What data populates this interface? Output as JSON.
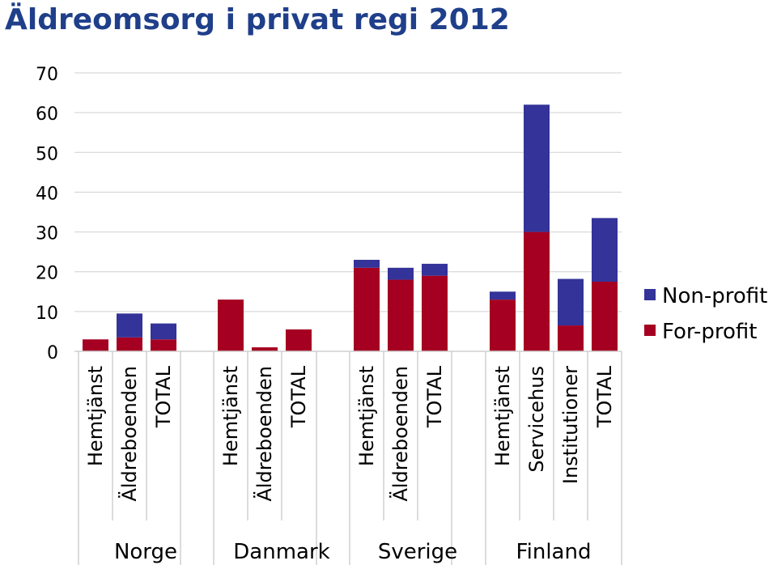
{
  "chart_data": {
    "type": "bar",
    "stacked": true,
    "title": "Äldreomsorg i privat regi 2012",
    "xlabel": "",
    "ylabel": "",
    "ylim": [
      0,
      70
    ],
    "yticks": [
      0,
      10,
      20,
      30,
      40,
      50,
      60,
      70
    ],
    "grid": true,
    "legend_position": "right",
    "groups": [
      {
        "name": "Norge",
        "categories": [
          "Hemtjänst",
          "Äldreboenden",
          "TOTAL"
        ]
      },
      {
        "name": "Danmark",
        "categories": [
          "Hemtjänst",
          "Äldreboenden",
          "TOTAL"
        ]
      },
      {
        "name": "Sverige",
        "categories": [
          "Hemtjänst",
          "Äldreboenden",
          "TOTAL"
        ]
      },
      {
        "name": "Finland",
        "categories": [
          "Hemtjänst",
          "Servicehus",
          "Institutioner",
          "TOTAL"
        ]
      }
    ],
    "categories": [
      "Hemtjänst",
      "Äldreboenden",
      "TOTAL",
      "Hemtjänst",
      "Äldreboenden",
      "TOTAL",
      "Hemtjänst",
      "Äldreboenden",
      "TOTAL",
      "Hemtjänst",
      "Servicehus",
      "Institutioner",
      "TOTAL"
    ],
    "series": [
      {
        "name": "For-profit",
        "color": "#a50021",
        "values": [
          3,
          3.5,
          3,
          13,
          1,
          5.5,
          21,
          18,
          19,
          13,
          30,
          6.5,
          17.5
        ]
      },
      {
        "name": "Non-profit",
        "color": "#333399",
        "values": [
          0,
          6,
          4,
          0,
          0,
          0,
          2,
          3,
          3,
          2,
          32,
          11.7,
          16
        ]
      }
    ],
    "legend": [
      {
        "name": "Non-profit",
        "color": "#333399"
      },
      {
        "name": "For-profit",
        "color": "#a50021"
      }
    ]
  }
}
